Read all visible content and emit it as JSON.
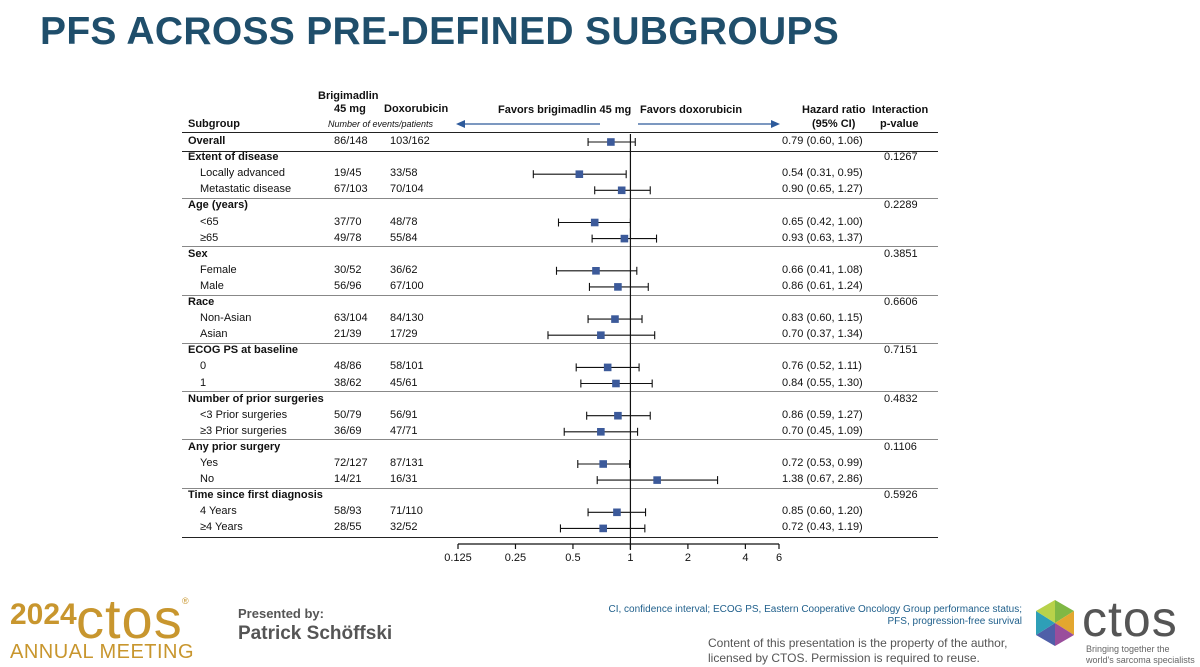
{
  "title": "PFS ACROSS PRE-DEFINED SUBGROUPS",
  "headers": {
    "subgroup": "Subgroup",
    "arm1_line1": "Brigimadlin",
    "arm1_line2": "45 mg",
    "arm2": "Doxorubicin",
    "events_note": "Number of events/patients",
    "favors_left": "Favors brigimadlin 45 mg",
    "favors_right": "Favors doxorubicin",
    "hr_line1": "Hazard ratio",
    "hr_line2": "(95% CI)",
    "pval_line1": "Interaction",
    "pval_line2": "p-value"
  },
  "chart_data": {
    "type": "forest",
    "x_scale": "log2",
    "x_ticks": [
      0.125,
      0.25,
      0.5,
      1,
      2,
      4,
      6
    ],
    "x_tick_labels": [
      "0.125",
      "0.25",
      "0.5",
      "1",
      "2",
      "4",
      "6"
    ],
    "xlim": [
      0.125,
      6
    ],
    "reference_line": 1,
    "rows": [
      {
        "label": "Overall",
        "kind": "overall",
        "n1": "86/148",
        "n2": "103/162",
        "hr_text": "0.79 (0.60, 1.06)",
        "hr": 0.79,
        "lo": 0.6,
        "hi": 1.06,
        "p": ""
      },
      {
        "label": "Extent of disease",
        "kind": "group",
        "p": "0.1267"
      },
      {
        "label": "Locally advanced",
        "kind": "sub",
        "n1": "19/45",
        "n2": "33/58",
        "hr_text": "0.54 (0.31, 0.95)",
        "hr": 0.54,
        "lo": 0.31,
        "hi": 0.95
      },
      {
        "label": "Metastatic disease",
        "kind": "sub",
        "n1": "67/103",
        "n2": "70/104",
        "hr_text": "0.90 (0.65, 1.27)",
        "hr": 0.9,
        "lo": 0.65,
        "hi": 1.27
      },
      {
        "label": "Age (years)",
        "kind": "group",
        "p": "0.2289"
      },
      {
        "label": "<65",
        "kind": "sub",
        "n1": "37/70",
        "n2": "48/78",
        "hr_text": "0.65 (0.42, 1.00)",
        "hr": 0.65,
        "lo": 0.42,
        "hi": 1.0
      },
      {
        "label": "≥65",
        "kind": "sub",
        "n1": "49/78",
        "n2": "55/84",
        "hr_text": "0.93 (0.63, 1.37)",
        "hr": 0.93,
        "lo": 0.63,
        "hi": 1.37
      },
      {
        "label": "Sex",
        "kind": "group",
        "p": "0.3851"
      },
      {
        "label": "Female",
        "kind": "sub",
        "n1": "30/52",
        "n2": "36/62",
        "hr_text": "0.66 (0.41, 1.08)",
        "hr": 0.66,
        "lo": 0.41,
        "hi": 1.08
      },
      {
        "label": "Male",
        "kind": "sub",
        "n1": "56/96",
        "n2": "67/100",
        "hr_text": "0.86 (0.61, 1.24)",
        "hr": 0.86,
        "lo": 0.61,
        "hi": 1.24
      },
      {
        "label": "Race",
        "kind": "group",
        "p": "0.6606"
      },
      {
        "label": "Non-Asian",
        "kind": "sub",
        "n1": "63/104",
        "n2": "84/130",
        "hr_text": "0.83 (0.60, 1.15)",
        "hr": 0.83,
        "lo": 0.6,
        "hi": 1.15
      },
      {
        "label": "Asian",
        "kind": "sub",
        "n1": "21/39",
        "n2": "17/29",
        "hr_text": "0.70 (0.37, 1.34)",
        "hr": 0.7,
        "lo": 0.37,
        "hi": 1.34
      },
      {
        "label": "ECOG PS at baseline",
        "kind": "group",
        "p": "0.7151"
      },
      {
        "label": "0",
        "kind": "sub",
        "n1": "48/86",
        "n2": "58/101",
        "hr_text": "0.76 (0.52, 1.11)",
        "hr": 0.76,
        "lo": 0.52,
        "hi": 1.11
      },
      {
        "label": "1",
        "kind": "sub",
        "n1": "38/62",
        "n2": "45/61",
        "hr_text": "0.84 (0.55, 1.30)",
        "hr": 0.84,
        "lo": 0.55,
        "hi": 1.3
      },
      {
        "label": "Number of prior surgeries",
        "kind": "group",
        "p": "0.4832"
      },
      {
        "label": "<3 Prior surgeries",
        "kind": "sub",
        "n1": "50/79",
        "n2": "56/91",
        "hr_text": "0.86 (0.59, 1.27)",
        "hr": 0.86,
        "lo": 0.59,
        "hi": 1.27
      },
      {
        "label": "≥3 Prior surgeries",
        "kind": "sub",
        "n1": "36/69",
        "n2": "47/71",
        "hr_text": "0.70 (0.45, 1.09)",
        "hr": 0.7,
        "lo": 0.45,
        "hi": 1.09
      },
      {
        "label": "Any prior surgery",
        "kind": "group",
        "p": "0.1106"
      },
      {
        "label": "Yes",
        "kind": "sub",
        "n1": "72/127",
        "n2": "87/131",
        "hr_text": "0.72 (0.53, 0.99)",
        "hr": 0.72,
        "lo": 0.53,
        "hi": 0.99
      },
      {
        "label": "No",
        "kind": "sub",
        "n1": "14/21",
        "n2": "16/31",
        "hr_text": "1.38 (0.67, 2.86)",
        "hr": 1.38,
        "lo": 0.67,
        "hi": 2.86
      },
      {
        "label": "Time since first diagnosis",
        "kind": "group",
        "p": "0.5926"
      },
      {
        "label": "4 Years",
        "kind": "sub",
        "n1": "58/93",
        "n2": "71/110",
        "hr_text": "0.85 (0.60, 1.20)",
        "hr": 0.85,
        "lo": 0.6,
        "hi": 1.2
      },
      {
        "label": "≥4 Years",
        "kind": "sub",
        "n1": "28/55",
        "n2": "32/52",
        "hr_text": "0.72 (0.43, 1.19)",
        "hr": 0.72,
        "lo": 0.43,
        "hi": 1.19
      }
    ]
  },
  "footer": {
    "year": "2024",
    "ctos": "ctos",
    "registered": "®",
    "annual_meeting": "ANNUAL MEETING",
    "presented_by": "Presented by:",
    "presenter": "Patrick Schöffski",
    "abbreviations": "CI, confidence interval; ECOG PS, Eastern Cooperative Oncology Group performance status; PFS, progression-free survival",
    "copyright": "Content of this presentation is the property of the author, licensed by CTOS. Permission is required to reuse.",
    "tagline": "Bringing together the world's sarcoma specialists"
  },
  "colors": {
    "title": "#1f4e6b",
    "marker": "#3c5a9a",
    "arrow": "#2d5a9b",
    "brand_gold": "#c8962e"
  }
}
